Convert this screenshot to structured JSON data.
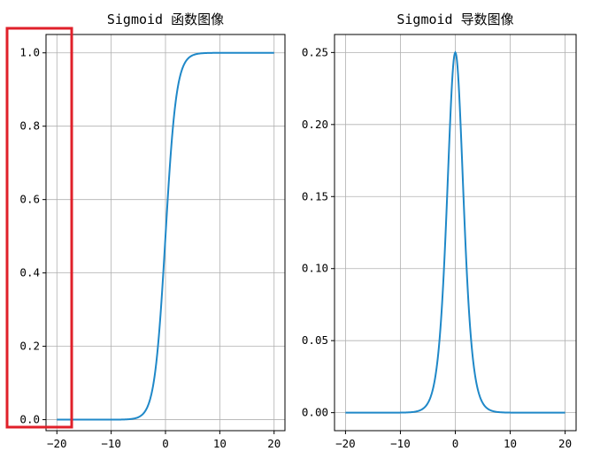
{
  "chart_data": [
    {
      "type": "line",
      "title": "Sigmoid 函数图像",
      "xlabel": "",
      "ylabel": "",
      "xlim": [
        -22,
        22
      ],
      "ylim": [
        -0.03,
        1.05
      ],
      "xticks": [
        -20,
        -10,
        0,
        10,
        20
      ],
      "xtick_labels": [
        "−20",
        "−10",
        "0",
        "10",
        "20"
      ],
      "yticks": [
        0.0,
        0.2,
        0.4,
        0.6,
        0.8,
        1.0
      ],
      "ytick_labels": [
        "0.0",
        "0.2",
        "0.4",
        "0.6",
        "0.8",
        "1.0"
      ],
      "grid": true,
      "function": "sigmoid",
      "x_range": [
        -20,
        20
      ],
      "series": [
        {
          "x": [
            -20,
            -10,
            -8,
            -6,
            -5,
            -4,
            -3,
            -2,
            -1,
            0,
            1,
            2,
            3,
            4,
            5,
            6,
            8,
            10,
            20
          ],
          "values": [
            0.0,
            0.0,
            0.0003,
            0.0025,
            0.0067,
            0.018,
            0.047,
            0.119,
            0.269,
            0.5,
            0.731,
            0.881,
            0.953,
            0.982,
            0.993,
            0.9975,
            0.9997,
            1.0,
            1.0
          ]
        }
      ]
    },
    {
      "type": "line",
      "title": "Sigmoid 导数图像",
      "xlabel": "",
      "ylabel": "",
      "xlim": [
        -22,
        22
      ],
      "ylim": [
        -0.0125,
        0.2625
      ],
      "xticks": [
        -20,
        -10,
        0,
        10,
        20
      ],
      "xtick_labels": [
        "−20",
        "−10",
        "0",
        "10",
        "20"
      ],
      "yticks": [
        0.0,
        0.05,
        0.1,
        0.15,
        0.2,
        0.25
      ],
      "ytick_labels": [
        "0.00",
        "0.05",
        "0.10",
        "0.15",
        "0.20",
        "0.25"
      ],
      "grid": true,
      "function": "sigmoid_derivative",
      "x_range": [
        -20,
        20
      ],
      "series": [
        {
          "x": [
            -20,
            -10,
            -8,
            -6,
            -4,
            -3,
            -2,
            -1,
            0,
            1,
            2,
            3,
            4,
            6,
            8,
            10,
            20
          ],
          "values": [
            0.0,
            0.0,
            0.0003,
            0.0025,
            0.0177,
            0.0452,
            0.105,
            0.1966,
            0.25,
            0.1966,
            0.105,
            0.0452,
            0.0177,
            0.0025,
            0.0003,
            0.0,
            0.0
          ]
        }
      ]
    }
  ],
  "annotation": {
    "type": "highlight-box",
    "color": "#e0202a",
    "target": "left-chart-y-axis"
  },
  "colors": {
    "line": "#1f88c8",
    "grid": "#b0b0b0",
    "axis": "#000000"
  }
}
